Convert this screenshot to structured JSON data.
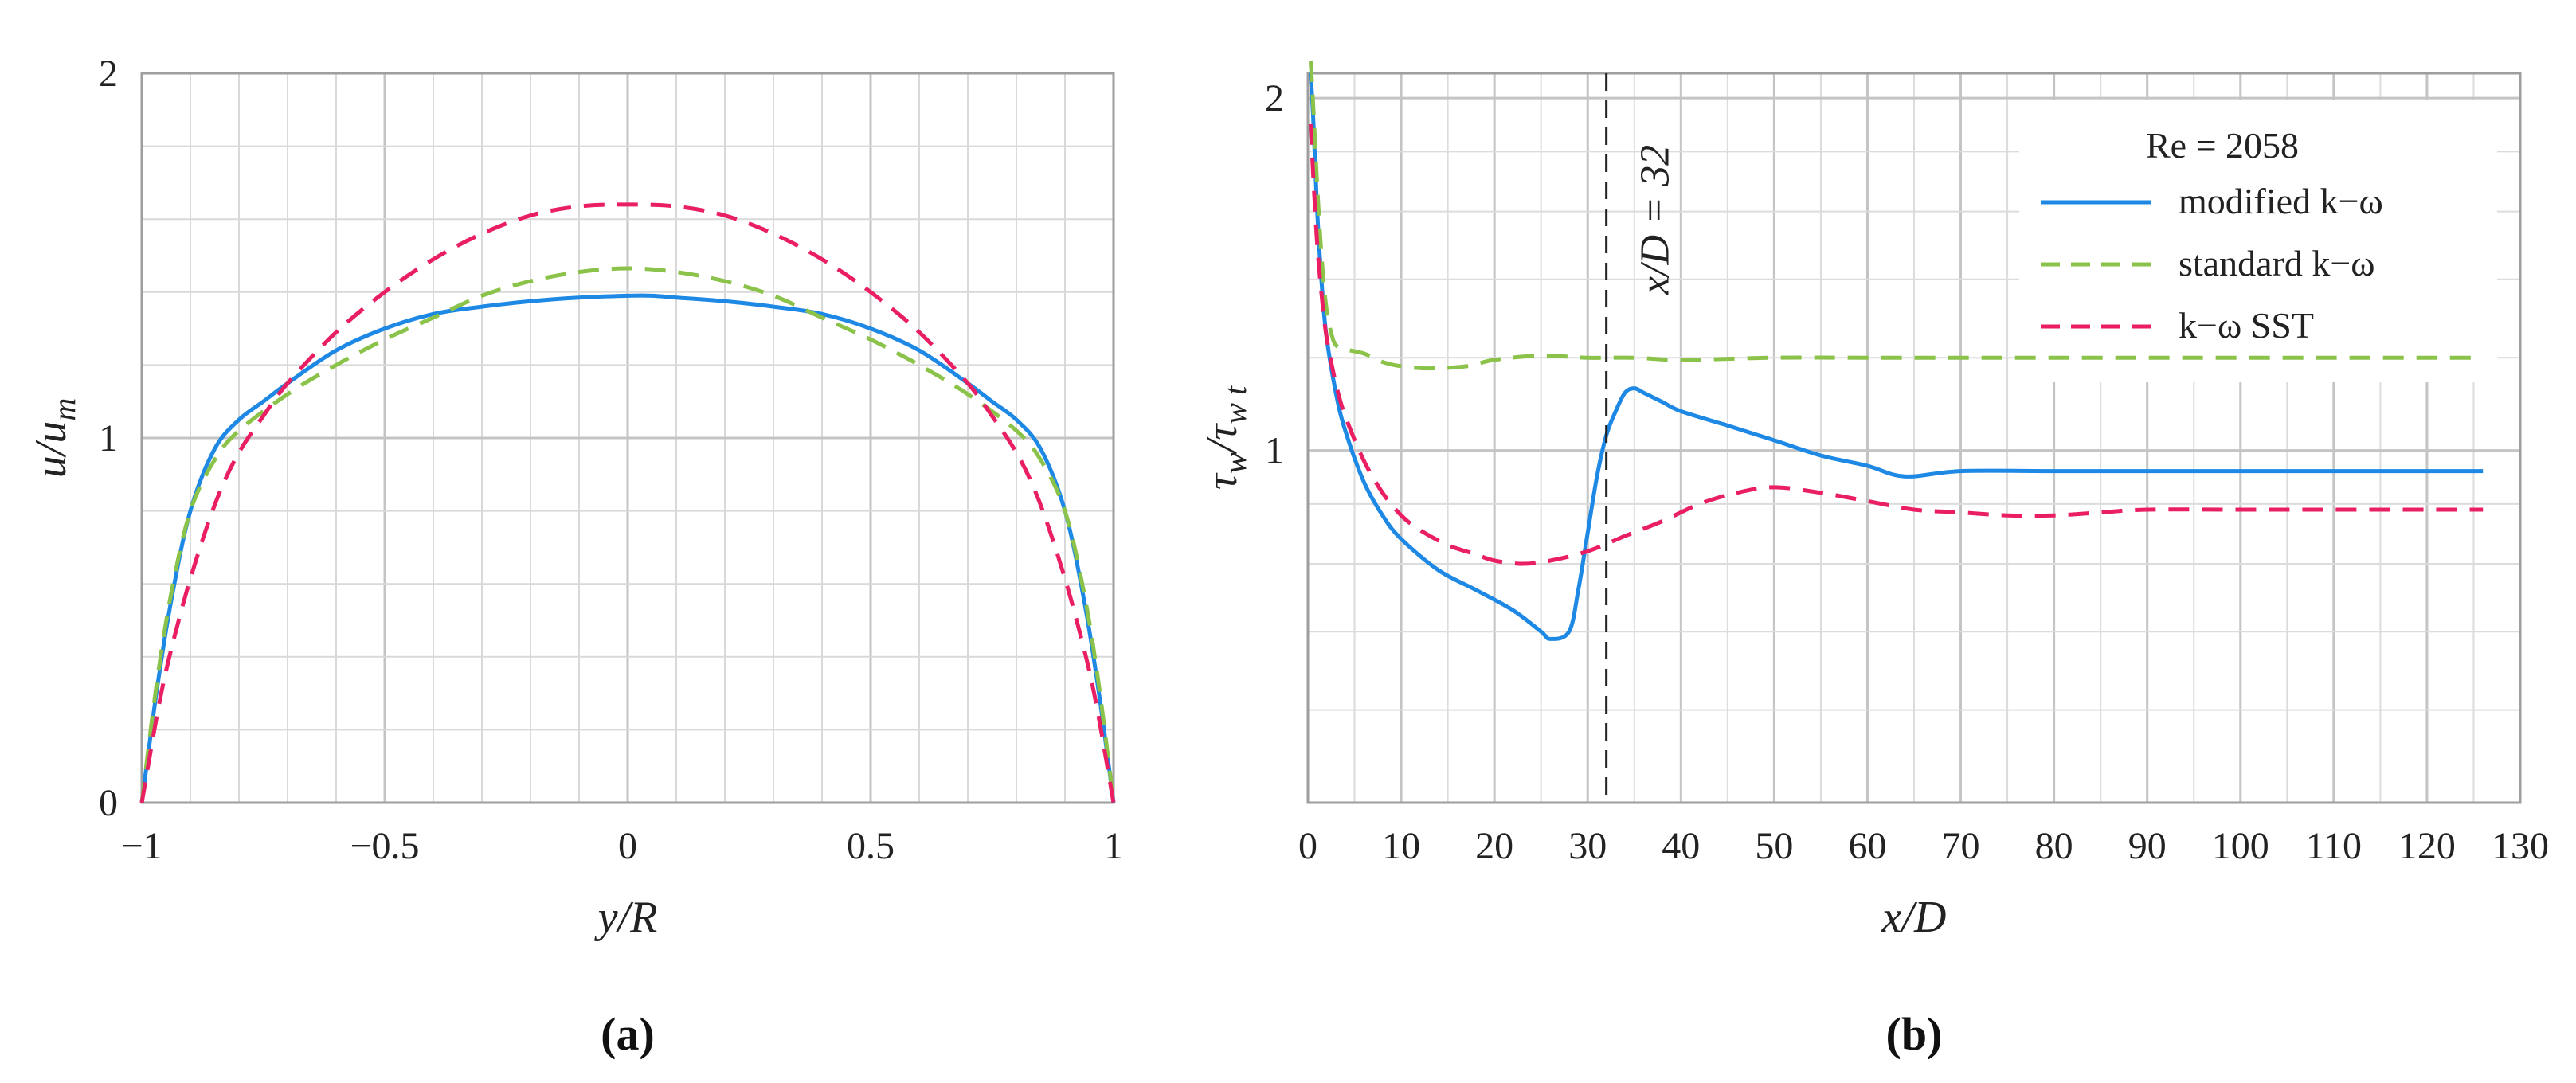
{
  "chart_data": [
    {
      "panel_label": "(a)",
      "type": "line",
      "xlabel": "y/R",
      "ylabel": "u/u_m",
      "ylabel_main": "u/u",
      "ylabel_sub": "m",
      "xlim": [
        -1,
        1
      ],
      "ylim": [
        0,
        2
      ],
      "grid": true,
      "xticks": [
        "−1",
        "−0.5",
        "0",
        "0.5",
        "1"
      ],
      "xtick_values": [
        -1,
        -0.5,
        0,
        0.5,
        1
      ],
      "yticks": [
        "0",
        "1",
        "2"
      ],
      "ytick_values": [
        0,
        1,
        2
      ],
      "series": [
        {
          "name": "modified k−ω",
          "color": "#1e88e5",
          "style": "solid",
          "x": [
            -1,
            -0.97,
            -0.94,
            -0.9,
            -0.85,
            -0.8,
            -0.75,
            -0.7,
            -0.6,
            -0.5,
            -0.4,
            -0.3,
            -0.2,
            -0.1,
            0,
            0.05,
            0.1,
            0.2,
            0.3,
            0.4,
            0.5,
            0.6,
            0.7,
            0.75,
            0.8,
            0.85,
            0.9,
            0.94,
            0.97,
            1
          ],
          "y": [
            0,
            0.3,
            0.55,
            0.8,
            0.97,
            1.05,
            1.1,
            1.15,
            1.24,
            1.3,
            1.34,
            1.36,
            1.375,
            1.385,
            1.39,
            1.39,
            1.385,
            1.375,
            1.36,
            1.34,
            1.3,
            1.24,
            1.15,
            1.1,
            1.05,
            0.97,
            0.8,
            0.55,
            0.3,
            0
          ]
        },
        {
          "name": "standard k−ω",
          "color": "#8bc34a",
          "style": "dashed",
          "x": [
            -1,
            -0.97,
            -0.94,
            -0.9,
            -0.85,
            -0.8,
            -0.7,
            -0.6,
            -0.5,
            -0.4,
            -0.3,
            -0.2,
            -0.1,
            0,
            0.1,
            0.2,
            0.3,
            0.4,
            0.5,
            0.6,
            0.7,
            0.8,
            0.85,
            0.9,
            0.94,
            0.97,
            1
          ],
          "y": [
            0,
            0.32,
            0.57,
            0.8,
            0.94,
            1.02,
            1.12,
            1.2,
            1.27,
            1.33,
            1.39,
            1.43,
            1.455,
            1.465,
            1.455,
            1.43,
            1.39,
            1.33,
            1.27,
            1.2,
            1.12,
            1.02,
            0.94,
            0.8,
            0.57,
            0.32,
            0
          ]
        },
        {
          "name": "k−ω SST",
          "color": "#e91e63",
          "style": "dashed",
          "x": [
            -1,
            -0.96,
            -0.92,
            -0.88,
            -0.84,
            -0.8,
            -0.75,
            -0.7,
            -0.6,
            -0.5,
            -0.4,
            -0.3,
            -0.2,
            -0.1,
            0,
            0.1,
            0.2,
            0.3,
            0.4,
            0.5,
            0.6,
            0.7,
            0.75,
            0.8,
            0.84,
            0.88,
            0.92,
            0.96,
            1
          ],
          "y": [
            0,
            0.3,
            0.52,
            0.7,
            0.85,
            0.96,
            1.06,
            1.15,
            1.29,
            1.4,
            1.49,
            1.56,
            1.61,
            1.635,
            1.64,
            1.635,
            1.61,
            1.56,
            1.49,
            1.4,
            1.29,
            1.15,
            1.06,
            0.96,
            0.85,
            0.7,
            0.52,
            0.3,
            0
          ]
        }
      ]
    },
    {
      "panel_label": "(b)",
      "type": "line",
      "xlabel": "x/D",
      "ylabel": "τ_w/τ_w t",
      "ylabel_main": "τ",
      "ylabel_sub1": "w",
      "ylabel_mid": "/τ",
      "ylabel_sub2": "w t",
      "xlim": [
        0,
        130
      ],
      "ylog": true,
      "ylim": [
        0.5,
        2.1
      ],
      "grid": true,
      "xticks": [
        "0",
        "10",
        "20",
        "30",
        "40",
        "50",
        "60",
        "70",
        "80",
        "90",
        "100",
        "110",
        "120",
        "130"
      ],
      "xtick_values": [
        0,
        10,
        20,
        30,
        40,
        50,
        60,
        70,
        80,
        90,
        100,
        110,
        120,
        130
      ],
      "yticks": [
        "1",
        "2"
      ],
      "ytick_values": [
        1,
        2
      ],
      "annotation": {
        "text": "x/D = 32",
        "x": 32
      },
      "legend_title": "Re = 2058",
      "legend_placement": "top-right",
      "series": [
        {
          "name": "modified k−ω",
          "color": "#1e88e5",
          "style": "solid",
          "x": [
            0.3,
            0.6,
            1,
            1.5,
            2,
            3,
            4,
            6,
            8,
            10,
            14,
            18,
            22,
            25,
            26,
            28,
            29,
            30,
            31,
            32,
            33,
            34,
            35,
            36,
            38,
            40,
            45,
            50,
            55,
            60,
            64,
            70,
            80,
            90,
            100,
            110,
            120,
            126
          ],
          "y": [
            2.1,
            1.9,
            1.6,
            1.38,
            1.25,
            1.12,
            1.04,
            0.94,
            0.88,
            0.84,
            0.79,
            0.76,
            0.73,
            0.7,
            0.69,
            0.7,
            0.76,
            0.85,
            0.95,
            1.03,
            1.08,
            1.12,
            1.13,
            1.12,
            1.1,
            1.08,
            1.05,
            1.02,
            0.99,
            0.97,
            0.95,
            0.96,
            0.96,
            0.96,
            0.96,
            0.96,
            0.96,
            0.96
          ]
        },
        {
          "name": "standard k−ω",
          "color": "#8bc34a",
          "style": "dashed",
          "x": [
            0.3,
            0.6,
            1,
            1.5,
            2,
            2.5,
            3,
            4,
            6,
            8,
            10,
            13,
            17,
            20,
            25,
            30,
            35,
            40,
            50,
            60,
            70,
            80,
            90,
            100,
            110,
            120,
            126
          ],
          "y": [
            2.15,
            1.95,
            1.68,
            1.45,
            1.32,
            1.26,
            1.23,
            1.22,
            1.21,
            1.19,
            1.18,
            1.175,
            1.18,
            1.195,
            1.205,
            1.2,
            1.2,
            1.195,
            1.2,
            1.2,
            1.2,
            1.2,
            1.2,
            1.2,
            1.2,
            1.2,
            1.2
          ]
        },
        {
          "name": "k−ω SST",
          "color": "#e91e63",
          "style": "dashed",
          "x": [
            0.3,
            0.6,
            1,
            1.5,
            2,
            3,
            4,
            6,
            8,
            10,
            12,
            15,
            18,
            20,
            23,
            26,
            30,
            34,
            38,
            42,
            46,
            50,
            55,
            60,
            65,
            70,
            75,
            80,
            85,
            90,
            100,
            110,
            120,
            126
          ],
          "y": [
            1.9,
            1.7,
            1.5,
            1.35,
            1.25,
            1.14,
            1.07,
            0.98,
            0.92,
            0.88,
            0.855,
            0.83,
            0.815,
            0.805,
            0.8,
            0.805,
            0.82,
            0.845,
            0.87,
            0.9,
            0.92,
            0.93,
            0.92,
            0.905,
            0.89,
            0.885,
            0.88,
            0.88,
            0.885,
            0.89,
            0.89,
            0.89,
            0.89,
            0.89
          ]
        }
      ]
    }
  ]
}
